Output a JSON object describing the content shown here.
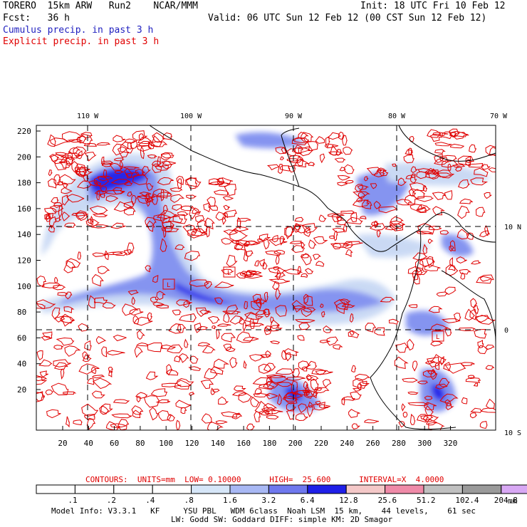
{
  "header": {
    "line1_left": "TORERO  15km ARW   Run2    NCAR/MMM",
    "line1_right": "Init: 18 UTC Fri 10 Feb 12",
    "line2_left": "Fcst:   36 h",
    "line2_right": "Valid: 06 UTC Sun 12 Feb 12 (00 CST Sun 12 Feb 12)",
    "line3": "Cumulus precip. in past 3 h",
    "line4": "Explicit precip. in past 3 h"
  },
  "map": {
    "top_lon_labels": [
      "110 W",
      "100 W",
      "90 W",
      "80 W",
      "70 W"
    ],
    "right_lat_labels": [
      "10 N",
      "0",
      "10 S"
    ],
    "left_y_ticks": [
      "220",
      "200",
      "180",
      "160",
      "140",
      "120",
      "100",
      "80",
      "60",
      "40",
      "20"
    ],
    "bottom_x_ticks": [
      "20",
      "40",
      "60",
      "80",
      "100",
      "120",
      "140",
      "160",
      "180",
      "200",
      "220",
      "240",
      "260",
      "280",
      "300",
      "320"
    ],
    "low_markers": [
      "L",
      "L",
      "L"
    ],
    "colors": {
      "explicit_contour": "#e00000",
      "coastline": "#000000",
      "cumulus_light": "#c8d8f4",
      "cumulus_mid": "#7f8ff0",
      "cumulus_dark": "#1f1fe8"
    }
  },
  "contour_caption": {
    "label": "CONTOURS:  UNITS=mm  LOW= 0.10000      HIGH=  25.600      INTERVAL=X  4.0000"
  },
  "colorbar": {
    "levels": [
      ".1",
      ".2",
      ".4",
      ".8",
      "1.6",
      "3.2",
      "6.4",
      "12.8",
      "25.6",
      "51.2",
      "102.4",
      "204.8"
    ],
    "unit": "mm",
    "colors": [
      "#ffffff",
      "#ffffff",
      "#ffffff",
      "#ffffff",
      "#d6e6f8",
      "#a8b8f4",
      "#6f78ee",
      "#1f1fe8",
      "#f4c8c8",
      "#ef8aa8",
      "#c0c0c0",
      "#9a9a9a",
      "#d8a8f4"
    ]
  },
  "footer": {
    "line1": "Model Info: V3.3.1   KF     YSU PBL   WDM 6class  Noah LSM  15 km,    44 levels,    61 sec",
    "line2": "LW: Godd SW: Goddard DIFF: simple KM: 2D Smagor"
  }
}
